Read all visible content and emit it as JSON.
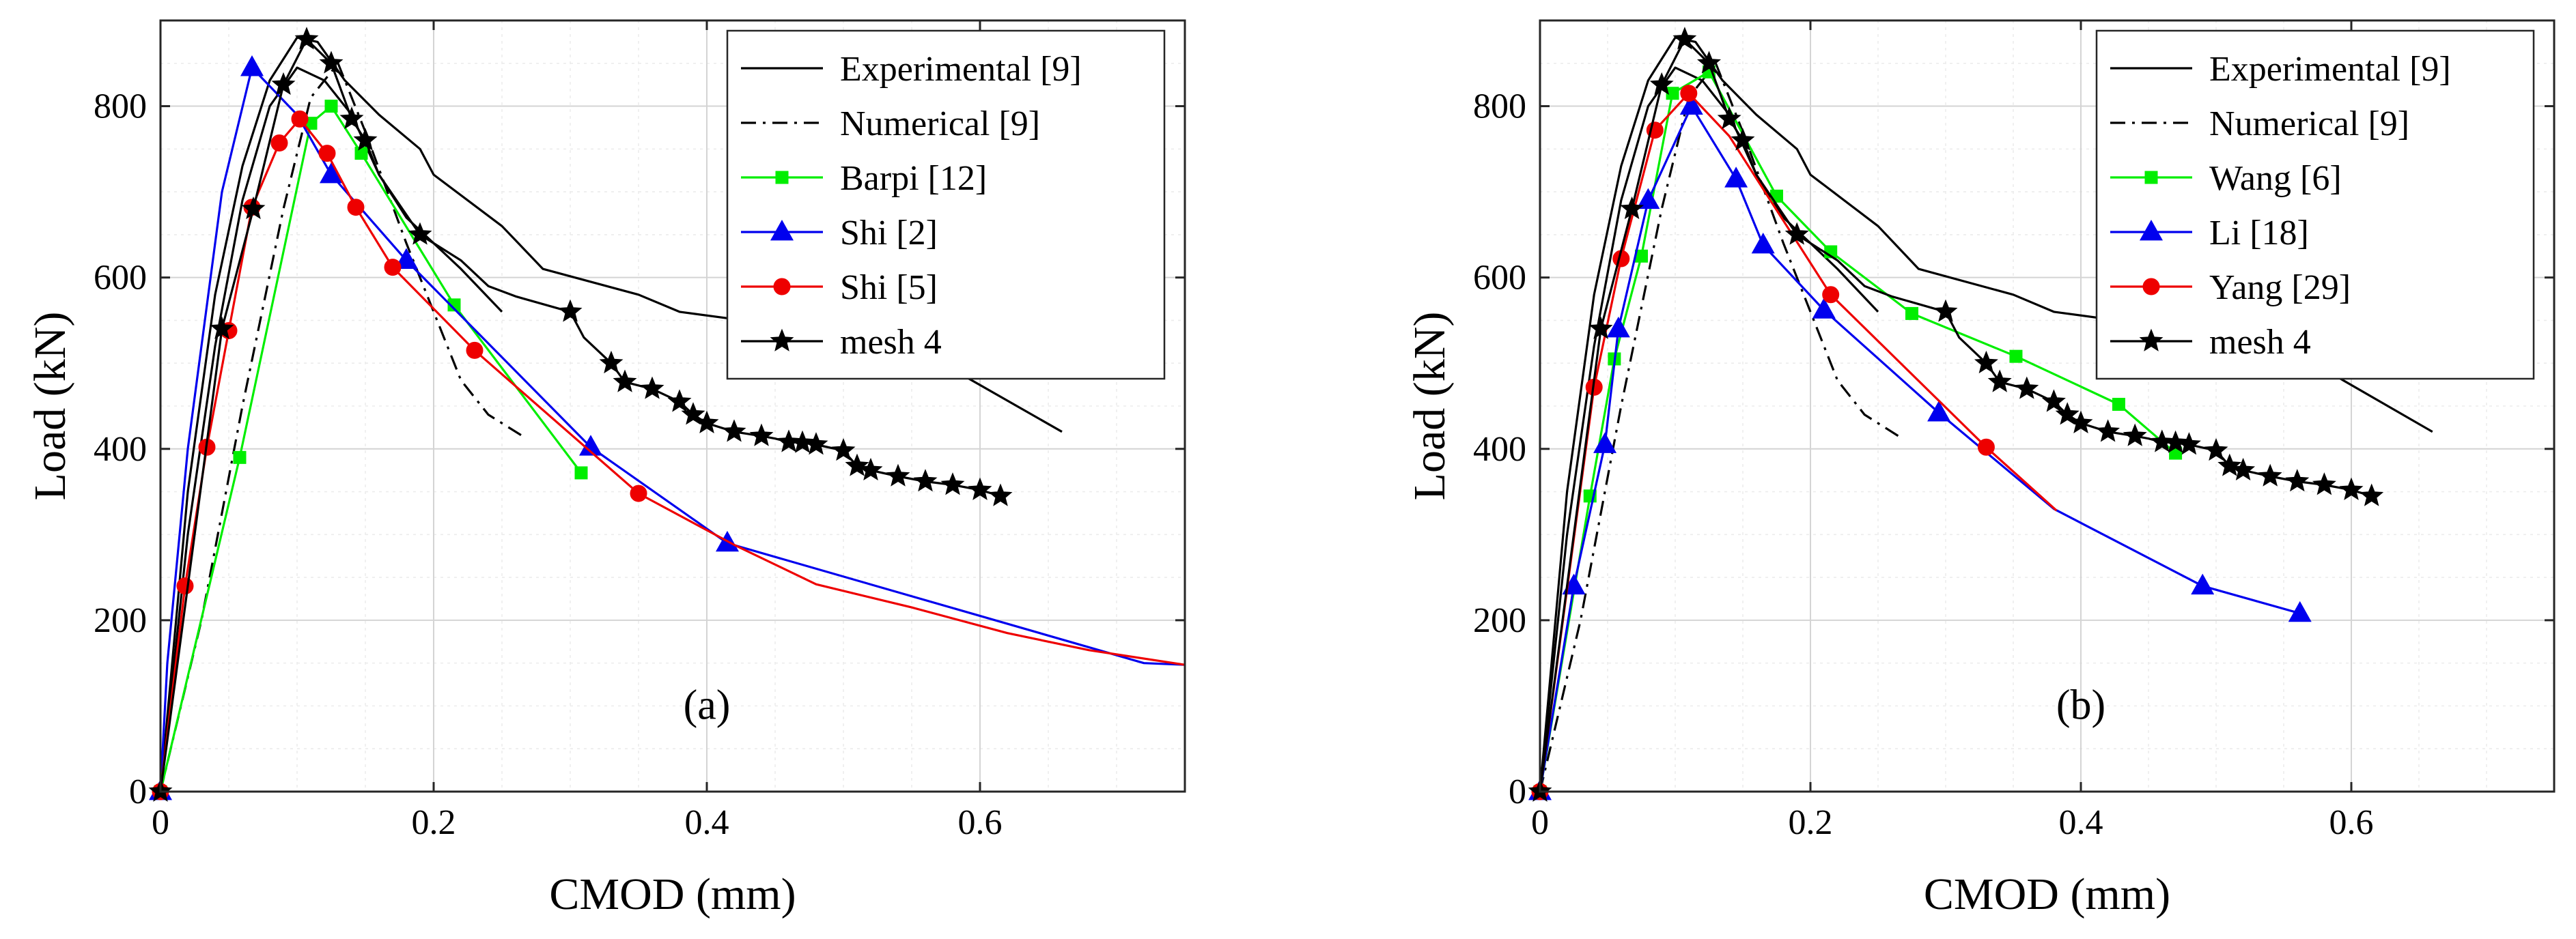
{
  "chart_data": [
    {
      "type": "line",
      "panel_label": "(a)",
      "xlabel": "CMOD (mm)",
      "ylabel": "Load (kN)",
      "xlim": [
        0,
        0.75
      ],
      "ylim": [
        0,
        900
      ],
      "xticks": [
        0,
        0.2,
        0.4,
        0.6
      ],
      "xtick_labels": [
        "0",
        "0.2",
        "0.4",
        "0.6"
      ],
      "yticks": [
        0,
        200,
        400,
        600,
        800
      ],
      "ytick_labels": [
        "0",
        "200",
        "400",
        "600",
        "800"
      ],
      "grid": true,
      "legend_position": "top-right",
      "series": [
        {
          "name": "Experimental [9]",
          "color": "#000000",
          "style": "solid",
          "marker": "none",
          "x": [
            0,
            0.02,
            0.04,
            0.06,
            0.08,
            0.1,
            0.115,
            0.135,
            0.16,
            0.19,
            0.2,
            0.25,
            0.28,
            0.35,
            0.38,
            0.45,
            0.55,
            0.66
          ],
          "y": [
            0,
            350,
            580,
            730,
            830,
            880,
            875,
            830,
            790,
            750,
            720,
            660,
            610,
            580,
            560,
            545,
            520,
            420
          ]
        },
        {
          "name": "",
          "color": "#000000",
          "style": "solid",
          "marker": "none",
          "x": [
            0,
            0.02,
            0.04,
            0.06,
            0.08,
            0.1,
            0.12,
            0.14,
            0.16,
            0.18,
            0.2,
            0.22,
            0.25
          ],
          "y": [
            0,
            300,
            520,
            690,
            800,
            845,
            830,
            790,
            720,
            670,
            640,
            610,
            560
          ]
        },
        {
          "name": "Numerical [9]",
          "color": "#000000",
          "style": "dashdot",
          "marker": "none",
          "x": [
            0,
            0.03,
            0.06,
            0.09,
            0.11,
            0.13,
            0.15,
            0.18,
            0.2,
            0.22,
            0.24,
            0.265
          ],
          "y": [
            0,
            200,
            450,
            680,
            810,
            850,
            770,
            640,
            560,
            480,
            440,
            415
          ]
        },
        {
          "name": "Barpi [12]",
          "color": "#00ee00",
          "style": "solid",
          "marker": "square",
          "x": [
            0,
            0.058,
            0.11,
            0.125,
            0.147,
            0.215,
            0.308
          ],
          "y": [
            0,
            390,
            780,
            800,
            745,
            568,
            372
          ]
        },
        {
          "name": "Shi [2]",
          "color": "#0000ee",
          "style": "solid",
          "marker": "triangle",
          "x": [
            0,
            0.005,
            0.02,
            0.045,
            0.067,
            0.1,
            0.125,
            0.18,
            0.315,
            0.415,
            0.72,
            0.75
          ],
          "y": [
            0,
            150,
            400,
            700,
            845,
            790,
            720,
            620,
            402,
            290,
            150,
            148
          ],
          "marked": [
            0,
            4,
            6,
            7,
            8,
            9
          ]
        },
        {
          "name": "Shi [5]",
          "color": "#ee0000",
          "style": "solid",
          "marker": "circle",
          "x": [
            0,
            0.018,
            0.034,
            0.05,
            0.067,
            0.087,
            0.102,
            0.122,
            0.143,
            0.17,
            0.23,
            0.35,
            0.42,
            0.48,
            0.55,
            0.62,
            0.68,
            0.75
          ],
          "y": [
            0,
            240,
            402,
            538,
            682,
            757,
            785,
            745,
            682,
            612,
            515,
            348,
            288,
            242,
            215,
            185,
            165,
            148
          ],
          "marked": [
            0,
            1,
            2,
            3,
            4,
            5,
            6,
            7,
            8,
            9,
            10,
            11
          ]
        },
        {
          "name": "mesh 4",
          "color": "#000000",
          "style": "solid",
          "marker": "star",
          "x": [
            0,
            0.045,
            0.068,
            0.09,
            0.107,
            0.125,
            0.14,
            0.15,
            0.16,
            0.19,
            0.2,
            0.22,
            0.24,
            0.26,
            0.3,
            0.31,
            0.33,
            0.34,
            0.36,
            0.38,
            0.39,
            0.4,
            0.42,
            0.44,
            0.45,
            0.46,
            0.47,
            0.48,
            0.5,
            0.51,
            0.52,
            0.54,
            0.56,
            0.58,
            0.6,
            0.615
          ],
          "y": [
            0,
            540,
            680,
            825,
            878,
            850,
            785,
            760,
            720,
            650,
            640,
            620,
            590,
            578,
            560,
            530,
            500,
            478,
            470,
            455,
            440,
            430,
            420,
            415,
            412,
            408,
            407,
            405,
            398,
            380,
            375,
            368,
            362,
            358,
            352,
            345
          ],
          "marked": [
            0,
            1,
            2,
            3,
            4,
            5,
            6,
            7,
            9,
            14,
            16,
            17,
            18,
            19,
            20,
            21,
            22,
            23,
            25,
            26,
            27,
            28,
            29,
            30,
            31,
            32,
            33,
            34,
            35
          ]
        }
      ]
    },
    {
      "type": "line",
      "panel_label": "(b)",
      "xlabel": "CMOD (mm)",
      "ylabel": "Load (kN)",
      "xlim": [
        0,
        0.75
      ],
      "ylim": [
        0,
        900
      ],
      "xticks": [
        0,
        0.2,
        0.4,
        0.6
      ],
      "xtick_labels": [
        "0",
        "0.2",
        "0.4",
        "0.6"
      ],
      "yticks": [
        0,
        200,
        400,
        600,
        800
      ],
      "ytick_labels": [
        "0",
        "200",
        "400",
        "600",
        "800"
      ],
      "grid": true,
      "legend_position": "top-right",
      "series": [
        {
          "name": "Experimental [9]",
          "color": "#000000",
          "style": "solid",
          "marker": "none",
          "x": [
            0,
            0.02,
            0.04,
            0.06,
            0.08,
            0.1,
            0.115,
            0.135,
            0.16,
            0.19,
            0.2,
            0.25,
            0.28,
            0.35,
            0.38,
            0.45,
            0.55,
            0.66
          ],
          "y": [
            0,
            350,
            580,
            730,
            830,
            880,
            875,
            830,
            790,
            750,
            720,
            660,
            610,
            580,
            560,
            545,
            520,
            420
          ]
        },
        {
          "name": "",
          "color": "#000000",
          "style": "solid",
          "marker": "none",
          "x": [
            0,
            0.02,
            0.04,
            0.06,
            0.08,
            0.1,
            0.12,
            0.14,
            0.16,
            0.18,
            0.2,
            0.22,
            0.25
          ],
          "y": [
            0,
            300,
            520,
            690,
            800,
            845,
            830,
            790,
            720,
            670,
            640,
            610,
            560
          ]
        },
        {
          "name": "Numerical [9]",
          "color": "#000000",
          "style": "dashdot",
          "marker": "none",
          "x": [
            0,
            0.03,
            0.06,
            0.09,
            0.11,
            0.13,
            0.15,
            0.18,
            0.2,
            0.22,
            0.24,
            0.265
          ],
          "y": [
            0,
            200,
            450,
            680,
            810,
            850,
            770,
            640,
            560,
            480,
            440,
            415
          ]
        },
        {
          "name": "Wang [6]",
          "color": "#00ee00",
          "style": "solid",
          "marker": "square",
          "x": [
            0,
            0.037,
            0.055,
            0.075,
            0.098,
            0.125,
            0.175,
            0.215,
            0.275,
            0.352,
            0.428,
            0.47
          ],
          "y": [
            0,
            345,
            505,
            625,
            815,
            840,
            695,
            630,
            558,
            508,
            452,
            395
          ]
        },
        {
          "name": "Li [18]",
          "color": "#0000ee",
          "style": "solid",
          "marker": "triangle",
          "x": [
            0,
            0.025,
            0.048,
            0.058,
            0.08,
            0.112,
            0.145,
            0.165,
            0.21,
            0.295,
            0.38,
            0.49,
            0.562
          ],
          "y": [
            0,
            240,
            405,
            540,
            690,
            800,
            715,
            638,
            562,
            442,
            330,
            240,
            208
          ],
          "marked": [
            0,
            1,
            2,
            3,
            4,
            5,
            6,
            7,
            8,
            9,
            11,
            12
          ]
        },
        {
          "name": "Yang [29]",
          "color": "#ee0000",
          "style": "solid",
          "marker": "circle",
          "x": [
            0,
            0.04,
            0.06,
            0.085,
            0.11,
            0.14,
            0.215,
            0.33,
            0.382
          ],
          "y": [
            0,
            472,
            622,
            772,
            815,
            765,
            580,
            402,
            328
          ],
          "marked": [
            0,
            1,
            2,
            3,
            4,
            6,
            7
          ]
        },
        {
          "name": "mesh 4",
          "color": "#000000",
          "style": "solid",
          "marker": "star",
          "x": [
            0,
            0.045,
            0.068,
            0.09,
            0.107,
            0.125,
            0.14,
            0.15,
            0.16,
            0.19,
            0.2,
            0.22,
            0.24,
            0.26,
            0.3,
            0.31,
            0.33,
            0.34,
            0.36,
            0.38,
            0.39,
            0.4,
            0.42,
            0.44,
            0.45,
            0.46,
            0.47,
            0.48,
            0.5,
            0.51,
            0.52,
            0.54,
            0.56,
            0.58,
            0.6,
            0.615
          ],
          "y": [
            0,
            540,
            680,
            825,
            878,
            850,
            785,
            760,
            720,
            650,
            640,
            620,
            590,
            578,
            560,
            530,
            500,
            478,
            470,
            455,
            440,
            430,
            420,
            415,
            412,
            408,
            407,
            405,
            398,
            380,
            375,
            368,
            362,
            358,
            352,
            345
          ],
          "marked": [
            0,
            1,
            2,
            3,
            4,
            5,
            6,
            7,
            9,
            14,
            16,
            17,
            18,
            19,
            20,
            21,
            22,
            23,
            25,
            26,
            27,
            28,
            29,
            30,
            31,
            32,
            33,
            34,
            35
          ]
        }
      ]
    }
  ]
}
